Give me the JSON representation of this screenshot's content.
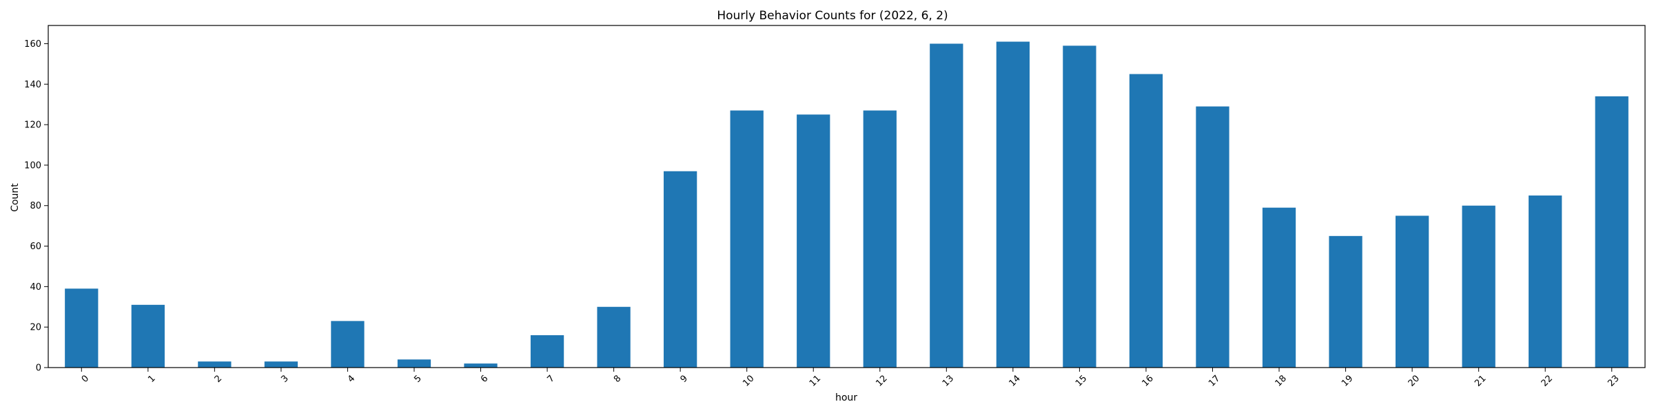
{
  "chart_data": {
    "type": "bar",
    "title": "Hourly Behavior Counts for (2022, 6, 2)",
    "xlabel": "hour",
    "ylabel": "Count",
    "categories": [
      "0",
      "1",
      "2",
      "3",
      "4",
      "5",
      "6",
      "7",
      "8",
      "9",
      "10",
      "11",
      "12",
      "13",
      "14",
      "15",
      "16",
      "17",
      "18",
      "19",
      "20",
      "21",
      "22",
      "23"
    ],
    "values": [
      39,
      31,
      3,
      3,
      23,
      4,
      2,
      16,
      30,
      97,
      127,
      125,
      127,
      160,
      161,
      159,
      145,
      129,
      79,
      65,
      75,
      80,
      85,
      134
    ],
    "ylim": [
      0,
      169
    ],
    "yticks": [
      0,
      20,
      40,
      60,
      80,
      100,
      120,
      140,
      160
    ],
    "bar_color": "#1f77b4",
    "grid": false,
    "legend": "none"
  }
}
